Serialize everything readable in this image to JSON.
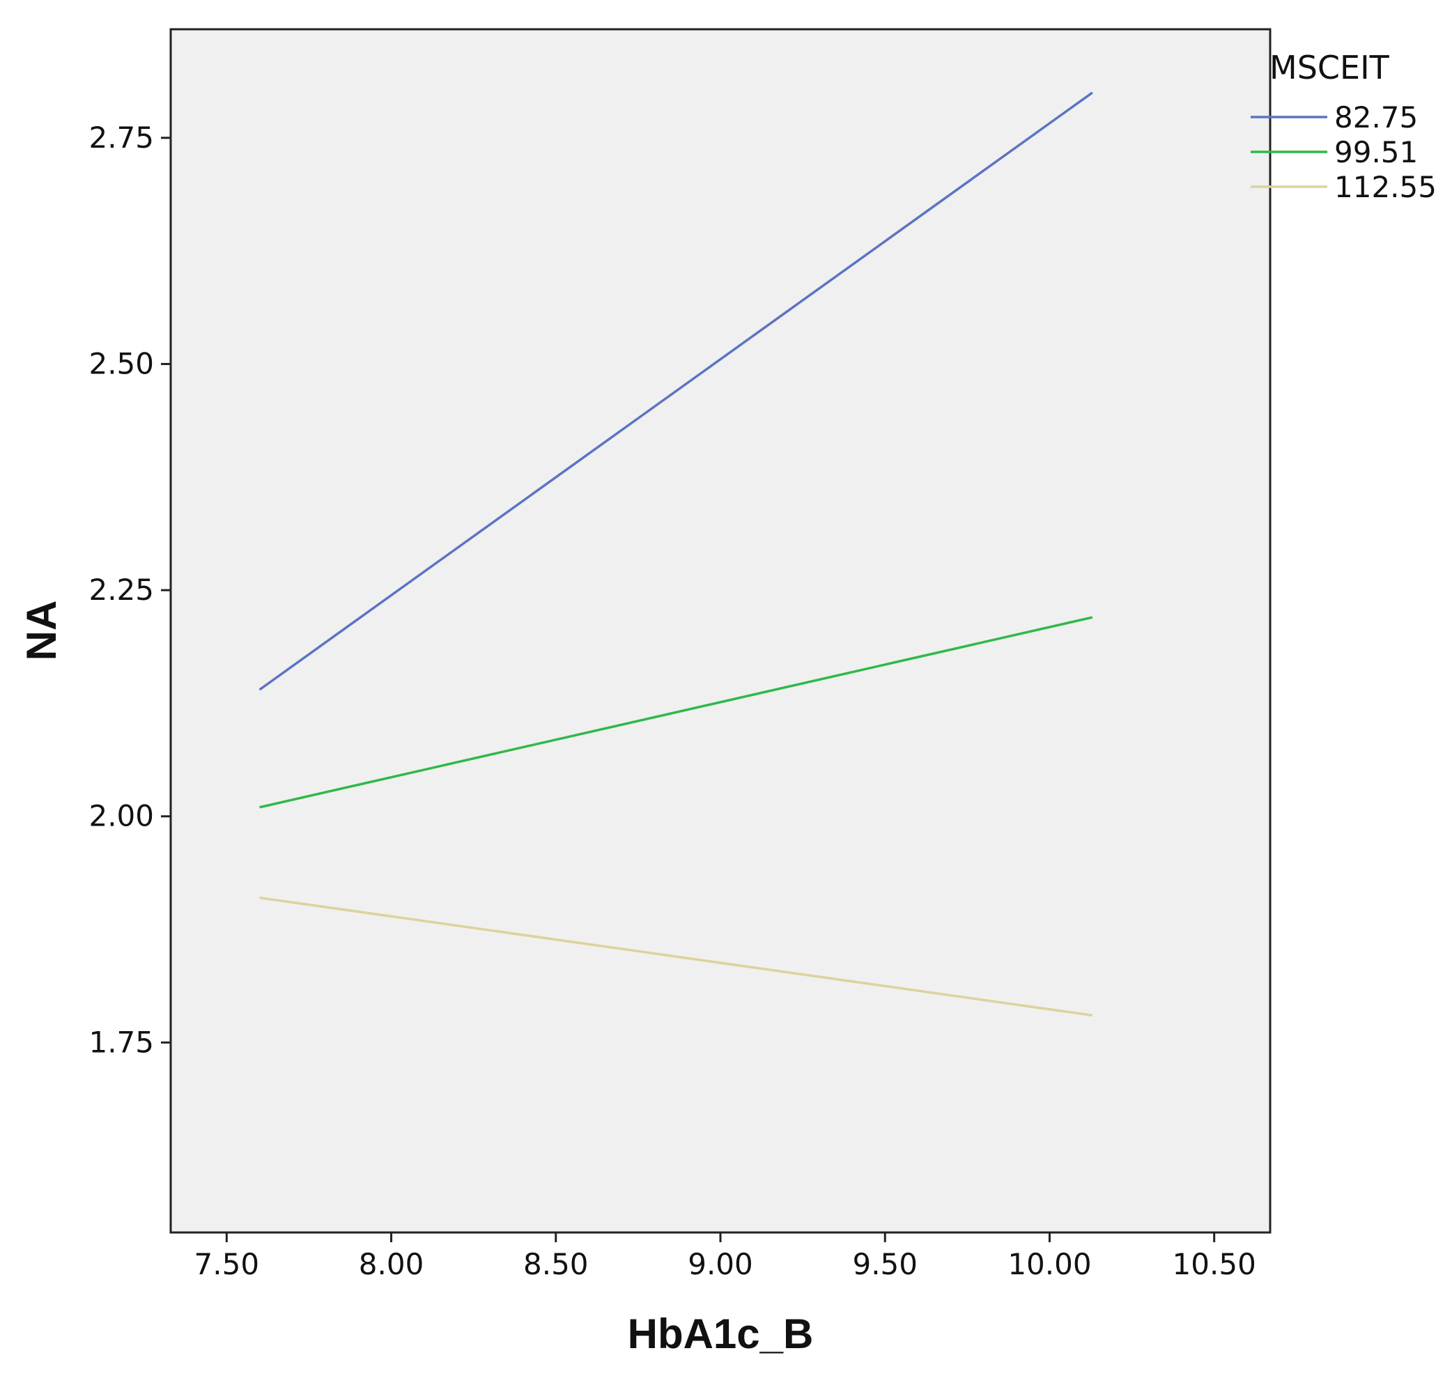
{
  "chart_data": {
    "type": "line",
    "xlabel": "HbA1c_B",
    "ylabel": "NA",
    "xlim": [
      7.33,
      10.67
    ],
    "ylim": [
      1.54,
      2.87
    ],
    "x_ticks": [
      "7.50",
      "8.00",
      "8.50",
      "9.00",
      "9.50",
      "10.00",
      "10.50"
    ],
    "x_tick_values": [
      7.5,
      8.0,
      8.5,
      9.0,
      9.5,
      10.0,
      10.5
    ],
    "y_ticks": [
      "1.75",
      "2.00",
      "2.25",
      "2.50",
      "2.75"
    ],
    "y_tick_values": [
      1.75,
      2.0,
      2.25,
      2.5,
      2.75
    ],
    "grid": false,
    "legend": {
      "title": "MSCEIT",
      "placement": "right-top"
    },
    "series": [
      {
        "name": "82.75",
        "color": "#5b74c4",
        "x": [
          7.6,
          10.13
        ],
        "y": [
          2.14,
          2.8
        ]
      },
      {
        "name": "99.51",
        "color": "#2fb84a",
        "x": [
          7.6,
          10.13
        ],
        "y": [
          2.01,
          2.22
        ]
      },
      {
        "name": "112.55",
        "color": "#dcd39a",
        "x": [
          7.6,
          10.13
        ],
        "y": [
          1.91,
          1.78
        ]
      }
    ],
    "plot_background": "#f0f0f0"
  }
}
